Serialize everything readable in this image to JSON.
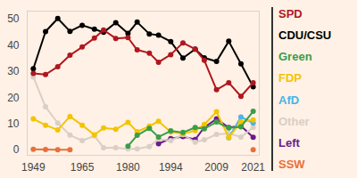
{
  "chart_data": {
    "type": "line",
    "x": [
      1949,
      1953,
      1957,
      1961,
      1965,
      1969,
      1972,
      1976,
      1980,
      1983,
      1987,
      1990,
      1994,
      1998,
      2002,
      2005,
      2009,
      2013,
      2017,
      2021
    ],
    "series": [
      {
        "name": "SPD",
        "color": "#b0171f",
        "values": [
          29.2,
          28.8,
          31.8,
          36.2,
          39.3,
          42.7,
          45.8,
          42.6,
          42.9,
          38.2,
          37.0,
          33.5,
          36.4,
          40.9,
          38.5,
          34.2,
          23.0,
          25.7,
          20.5,
          25.7
        ]
      },
      {
        "name": "CDU/CSU",
        "color": "#000000",
        "values": [
          31.0,
          45.2,
          50.2,
          45.3,
          47.6,
          46.1,
          44.9,
          48.6,
          44.5,
          48.8,
          44.3,
          43.8,
          41.4,
          35.1,
          38.5,
          35.2,
          33.8,
          41.5,
          32.9,
          24.1
        ]
      },
      {
        "name": "Green",
        "color": "#3a9d48",
        "values": [
          null,
          null,
          null,
          null,
          null,
          null,
          null,
          null,
          1.5,
          5.6,
          8.3,
          5.0,
          7.3,
          6.7,
          8.6,
          8.1,
          10.7,
          8.4,
          8.9,
          14.8
        ]
      },
      {
        "name": "FDP",
        "color": "#f2c400",
        "values": [
          11.9,
          9.5,
          7.7,
          12.8,
          9.5,
          5.8,
          8.4,
          7.9,
          10.6,
          7.0,
          9.1,
          11.0,
          6.9,
          6.2,
          7.4,
          9.8,
          14.6,
          4.8,
          10.7,
          11.5
        ]
      },
      {
        "name": "AfD",
        "color": "#4cb3e6",
        "values": [
          null,
          null,
          null,
          null,
          null,
          null,
          null,
          null,
          null,
          null,
          null,
          null,
          null,
          null,
          null,
          null,
          null,
          4.7,
          12.6,
          10.3
        ]
      },
      {
        "name": "Other",
        "color": "#d9cfc6",
        "values": [
          27.9,
          16.5,
          10.3,
          5.7,
          3.6,
          5.4,
          0.9,
          0.9,
          0.5,
          0.5,
          1.3,
          4.2,
          3.6,
          5.9,
          3.0,
          3.9,
          6.0,
          6.3,
          5.0,
          8.6
        ]
      },
      {
        "name": "Left",
        "color": "#6a1b8f",
        "values": [
          null,
          null,
          null,
          null,
          null,
          null,
          null,
          null,
          null,
          null,
          null,
          2.4,
          4.4,
          5.1,
          4.0,
          8.7,
          11.9,
          8.6,
          9.2,
          4.9
        ]
      },
      {
        "name": "SSW",
        "color": "#e8703a",
        "values": [
          0.3,
          0.2,
          0.1,
          0.1,
          null,
          null,
          null,
          null,
          null,
          null,
          null,
          null,
          null,
          null,
          null,
          null,
          null,
          null,
          null,
          0.1
        ]
      }
    ],
    "xlim": [
      1947,
      2023
    ],
    "xticks": [
      1949,
      1965,
      1980,
      1994,
      2009,
      2021
    ],
    "ylim": [
      -2,
      53
    ],
    "yticks": [
      0,
      10,
      20,
      30,
      40,
      50
    ],
    "grid": false,
    "marker": "circle",
    "legend": "right"
  }
}
